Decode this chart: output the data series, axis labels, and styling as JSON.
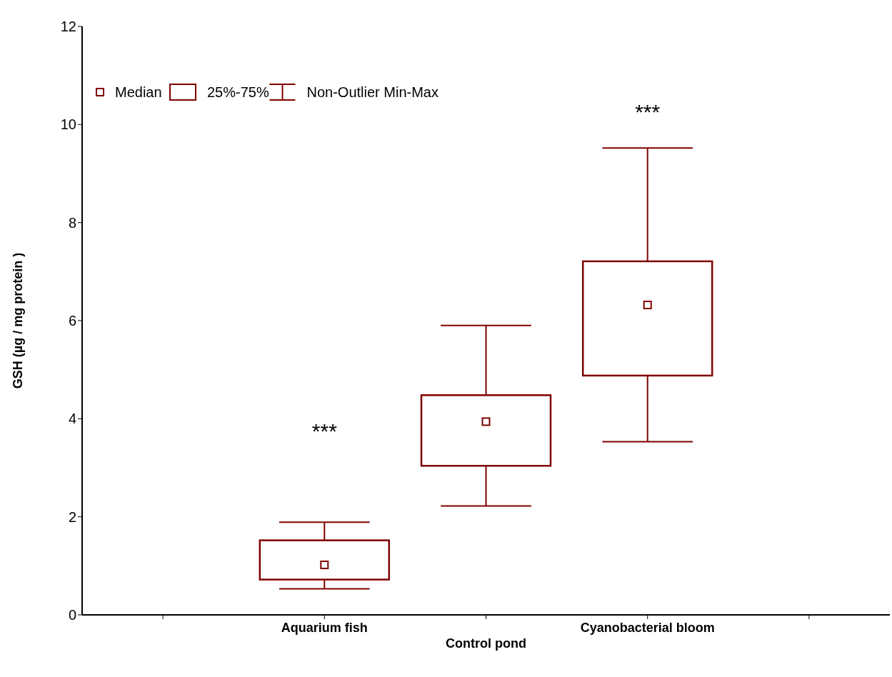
{
  "chart_data": {
    "type": "box",
    "ylabel": "GSH (µg / mg protein )",
    "categories": [
      null,
      "Aquarium fish",
      "Control pond",
      "Cyanobacterial bloom",
      null
    ],
    "series": [
      {
        "color": "#800000",
        "boxes": [
          null,
          {
            "low": 0.53,
            "q1": 0.72,
            "median": 1.02,
            "q3": 1.52,
            "high": 1.89
          },
          {
            "low": 2.22,
            "q1": 3.04,
            "median": 3.94,
            "q3": 4.48,
            "high": 5.9
          },
          {
            "low": 3.53,
            "q1": 4.88,
            "median": 6.32,
            "q3": 7.21,
            "high": 9.52
          },
          null
        ]
      }
    ],
    "ylim": [
      0,
      12
    ],
    "yticks": [
      0,
      2,
      4,
      6,
      8,
      10,
      12
    ],
    "annotations": [
      "Median",
      "25%-75%",
      "Non-Outlier Min-Max",
      "***",
      "***"
    ]
  }
}
